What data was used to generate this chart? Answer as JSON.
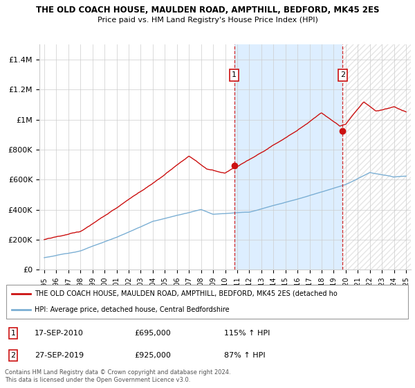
{
  "title1": "THE OLD COACH HOUSE, MAULDEN ROAD, AMPTHILL, BEDFORD, MK45 2ES",
  "title2": "Price paid vs. HM Land Registry's House Price Index (HPI)",
  "legend_line1": "THE OLD COACH HOUSE, MAULDEN ROAD, AMPTHILL, BEDFORD, MK45 2ES (detached ho",
  "legend_line2": "HPI: Average price, detached house, Central Bedfordshire",
  "footer": "Contains HM Land Registry data © Crown copyright and database right 2024.\nThis data is licensed under the Open Government Licence v3.0.",
  "hpi_color": "#7bafd4",
  "price_color": "#cc1111",
  "vline_color": "#cc1111",
  "shade_color": "#ddeeff",
  "ylim": [
    0,
    1500000
  ],
  "yticks": [
    0,
    200000,
    400000,
    600000,
    800000,
    1000000,
    1200000,
    1400000
  ],
  "ytick_labels": [
    "£0",
    "£200K",
    "£400K",
    "£600K",
    "£800K",
    "£1M",
    "£1.2M",
    "£1.4M"
  ],
  "sale1_x": 2010.75,
  "sale1_y": 695000,
  "sale2_x": 2019.75,
  "sale2_y": 925000,
  "xlim_left": 1994.6,
  "xlim_right": 2025.4
}
